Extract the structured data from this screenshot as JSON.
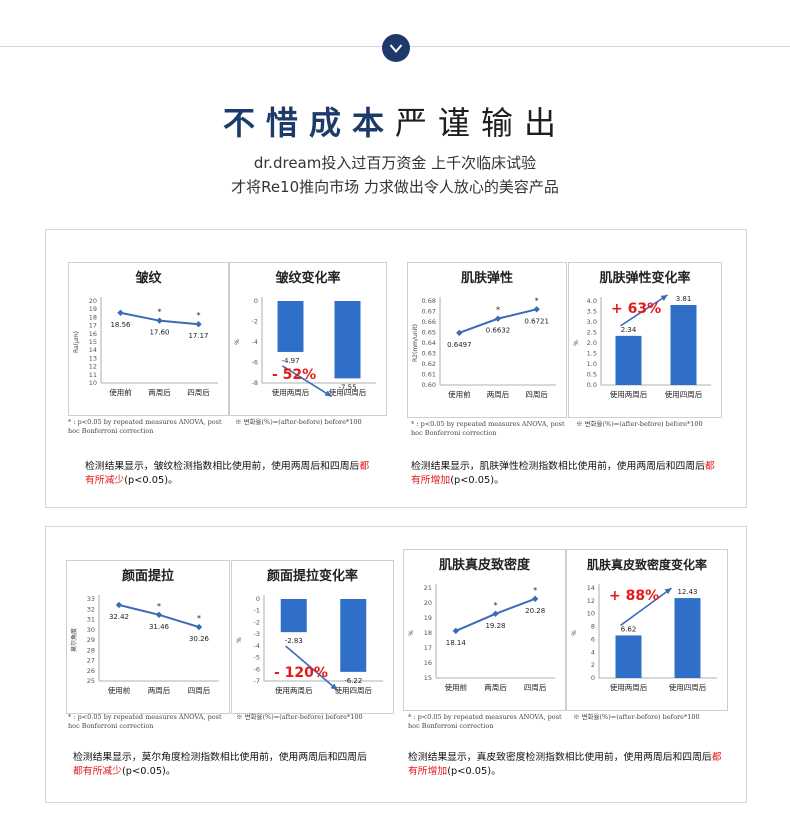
{
  "header": {
    "title_part1": "不惜成本",
    "title_part2": "严谨输出",
    "subtitle_line1": "dr.dream投入过百万资金 上千次临床试验",
    "subtitle_line2": "才将Re10推向市场 力求做出令人放心的美容产品"
  },
  "panels": [
    {
      "caption_normal": "检测结果显示，皱纹检测指数相比使用前，使用两周后和四周后",
      "caption_red": "都有所减少",
      "caption_end": "(p<0.05)。",
      "footnote": "* : p<0.05 by repeated measures ANOVA, post hoc Bonferroni correction",
      "change_note": "※ 변화율(%)=(after-before) before*100"
    },
    {
      "caption_normal": "检测结果显示，肌肤弹性检测指数相比使用前，使用两周后和四周后",
      "caption_red": "都有所增加",
      "caption_end": "(p<0.05)。",
      "footnote": "* : p<0.05 by repeated measures ANOVA, post hoc Bonferroni correction",
      "change_note": "※ 변화율(%)=(after-before) before*100"
    },
    {
      "caption_normal": "检测结果显示，莫尔角度检测指数相比使用前，使用两周后和四周后",
      "caption_red": "都有所减少",
      "caption_end": "(p<0.05)。",
      "footnote": "* : p<0.05 by repeated measures ANOVA, post hoc Bonferroni correction",
      "change_note": "※ 변화율(%)=(after-before) before*100"
    },
    {
      "caption_normal": "检测结果显示，真皮致密度检测指数相比使用前，使用两周后和四周后",
      "caption_red": "都有所增加",
      "caption_end": "(p<0.05)。",
      "footnote": "* : p<0.05 by repeated measures ANOVA, post hoc Bonferroni correction",
      "change_note": "※ 변화율(%)=(after-before) before*100"
    }
  ],
  "colors": {
    "accent_navy": "#1d3a6b",
    "line_series": "#3b6bb5",
    "bar": "#2f6fc8",
    "emphasis_red": "#e31b1b"
  },
  "chart_data": [
    {
      "type": "line",
      "title": "皱纹",
      "ylabel": "Ra(μm)",
      "categories": [
        "使用前",
        "两周后",
        "四周后"
      ],
      "values": [
        18.56,
        17.6,
        17.17
      ],
      "labels": [
        "18.56",
        "17.60",
        "17.17"
      ],
      "ylim": [
        10,
        20
      ],
      "yticks": [
        "20",
        "19",
        "18",
        "17",
        "16",
        "15",
        "14",
        "13",
        "12",
        "11",
        "10"
      ],
      "significant": [
        false,
        true,
        true
      ]
    },
    {
      "type": "bar",
      "title": "皱纹变化率",
      "ylabel": "%",
      "categories": [
        "使用两周后",
        "使用四周后"
      ],
      "values": [
        -4.97,
        -7.55
      ],
      "labels": [
        "-4.97",
        "-7.55"
      ],
      "ylim": [
        -8,
        0
      ],
      "yticks": [
        "0",
        "-2",
        "-4",
        "-6",
        "-8"
      ],
      "annotation": "- 52%"
    },
    {
      "type": "line",
      "title": "肌肤弹性",
      "ylabel": "R2(mm/unit)",
      "categories": [
        "使用前",
        "两周后",
        "四周后"
      ],
      "values": [
        0.6497,
        0.6632,
        0.6721
      ],
      "labels": [
        "0.6497",
        "0.6632",
        "0.6721"
      ],
      "ylim": [
        0.6,
        0.68
      ],
      "yticks": [
        "0.68",
        "0.67",
        "0.66",
        "0.65",
        "0.64",
        "0.63",
        "0.62",
        "0.61",
        "0.60"
      ],
      "significant": [
        false,
        true,
        true
      ]
    },
    {
      "type": "bar",
      "title": "肌肤弹性变化率",
      "ylabel": "%",
      "categories": [
        "使用两周后",
        "使用四周后"
      ],
      "values": [
        2.34,
        3.81
      ],
      "labels": [
        "2.34",
        "3.81"
      ],
      "ylim": [
        0,
        4
      ],
      "yticks": [
        "4.0",
        "3.5",
        "3.0",
        "2.5",
        "2.0",
        "1.5",
        "1.0",
        "0.5",
        "0.0"
      ],
      "annotation": "+ 63%"
    },
    {
      "type": "line",
      "title": "颜面提拉",
      "ylabel": "莫尔角度",
      "categories": [
        "使用前",
        "两周后",
        "四周后"
      ],
      "values": [
        32.42,
        31.46,
        30.26
      ],
      "labels": [
        "32.42",
        "31.46",
        "30.26"
      ],
      "ylim": [
        25,
        33
      ],
      "yticks": [
        "33",
        "32",
        "31",
        "30",
        "29",
        "28",
        "27",
        "26",
        "25"
      ],
      "significant": [
        false,
        true,
        true
      ]
    },
    {
      "type": "bar",
      "title": "颜面提拉变化率",
      "ylabel": "%",
      "categories": [
        "使用两周后",
        "使用四周后"
      ],
      "values": [
        -2.83,
        -6.22
      ],
      "labels": [
        "-2.83",
        "-6.22"
      ],
      "ylim": [
        -7,
        0
      ],
      "yticks": [
        "0",
        "-1",
        "-2",
        "-3",
        "-4",
        "-5",
        "-6",
        "-7"
      ],
      "annotation": "- 120%"
    },
    {
      "type": "line",
      "title": "肌肤真皮致密度",
      "ylabel": "%",
      "categories": [
        "使用前",
        "两周后",
        "四周后"
      ],
      "values": [
        18.14,
        19.28,
        20.28
      ],
      "labels": [
        "18.14",
        "19.28",
        "20.28"
      ],
      "ylim": [
        15,
        21
      ],
      "yticks": [
        "21",
        "20",
        "19",
        "18",
        "17",
        "16",
        "15"
      ],
      "significant": [
        false,
        true,
        true
      ]
    },
    {
      "type": "bar",
      "title": "肌肤真皮致密度变化率",
      "ylabel": "%",
      "categories": [
        "使用两周后",
        "使用四周后"
      ],
      "values": [
        6.62,
        12.43
      ],
      "labels": [
        "6.62",
        "12.43"
      ],
      "ylim": [
        0,
        14
      ],
      "yticks": [
        "14",
        "12",
        "10",
        "8",
        "6",
        "4",
        "2",
        "0"
      ],
      "annotation": "+ 88%"
    }
  ]
}
